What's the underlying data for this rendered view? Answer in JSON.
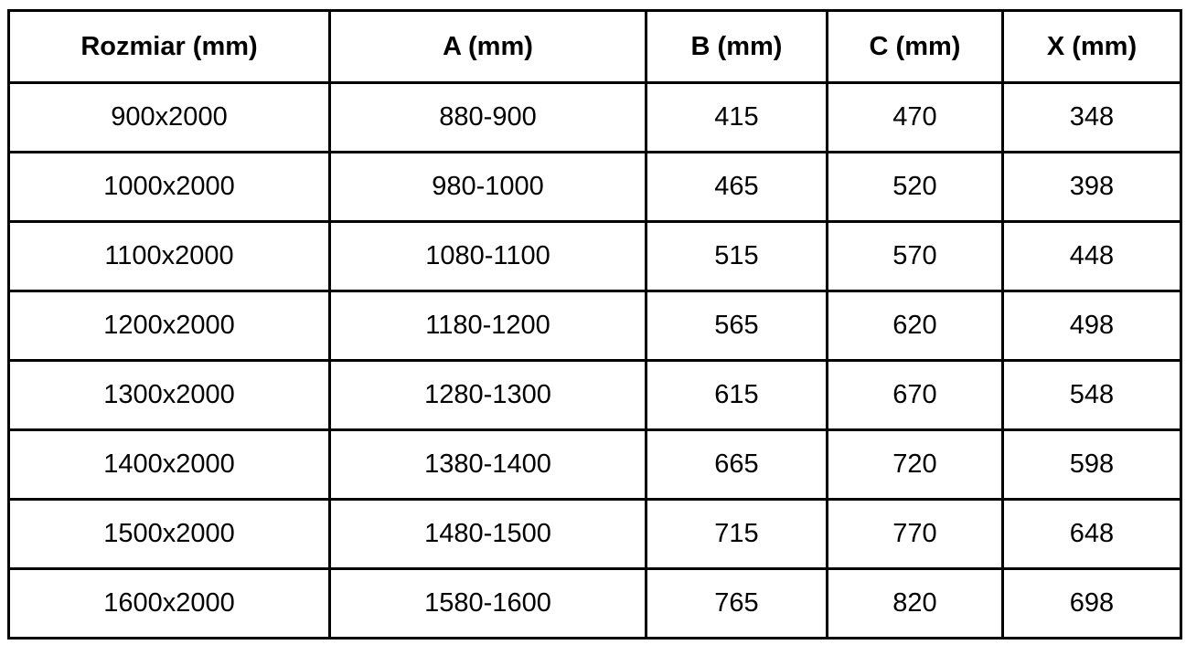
{
  "table": {
    "headers": [
      "Rozmiar (mm)",
      "A (mm)",
      "B (mm)",
      "C (mm)",
      "X (mm)"
    ],
    "rows": [
      [
        "900x2000",
        "880-900",
        "415",
        "470",
        "348"
      ],
      [
        "1000x2000",
        "980-1000",
        "465",
        "520",
        "398"
      ],
      [
        "1100x2000",
        "1080-1100",
        "515",
        "570",
        "448"
      ],
      [
        "1200x2000",
        "1180-1200",
        "565",
        "620",
        "498"
      ],
      [
        "1300x2000",
        "1280-1300",
        "615",
        "670",
        "548"
      ],
      [
        "1400x2000",
        "1380-1400",
        "665",
        "720",
        "598"
      ],
      [
        "1500x2000",
        "1480-1500",
        "715",
        "770",
        "648"
      ],
      [
        "1600x2000",
        "1580-1600",
        "765",
        "820",
        "698"
      ]
    ]
  },
  "colors": {
    "border": "#000000",
    "text": "#000000",
    "background": "#ffffff"
  }
}
